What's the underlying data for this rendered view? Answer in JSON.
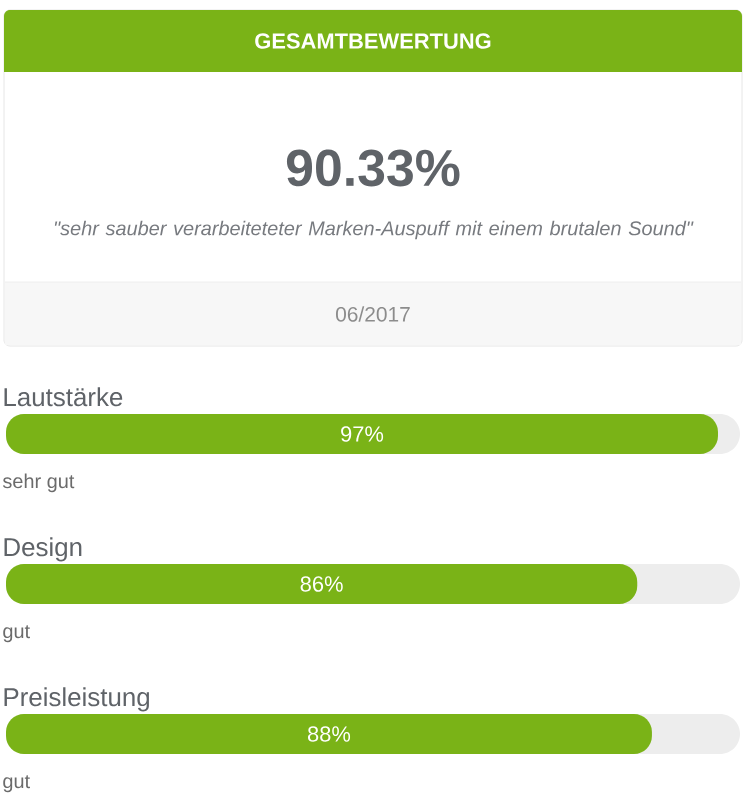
{
  "chart_data": {
    "type": "bar",
    "orientation": "horizontal",
    "title": "GESAMTBEWERTUNG",
    "subtitle": "90.33%",
    "categories": [
      "Lautstärke",
      "Design",
      "Preisleistung"
    ],
    "values": [
      97,
      86,
      88
    ],
    "color": "#7ab317",
    "value_labels": [
      "97%",
      "86%",
      "88%"
    ],
    "xlim": [
      0,
      100
    ],
    "annotations": [
      "\"sehr sauber verarbeiteteter Marken-Auspuff mit einem brutalen Sound\"",
      "06/2017",
      "sehr gut",
      "gut",
      "gut"
    ]
  }
}
